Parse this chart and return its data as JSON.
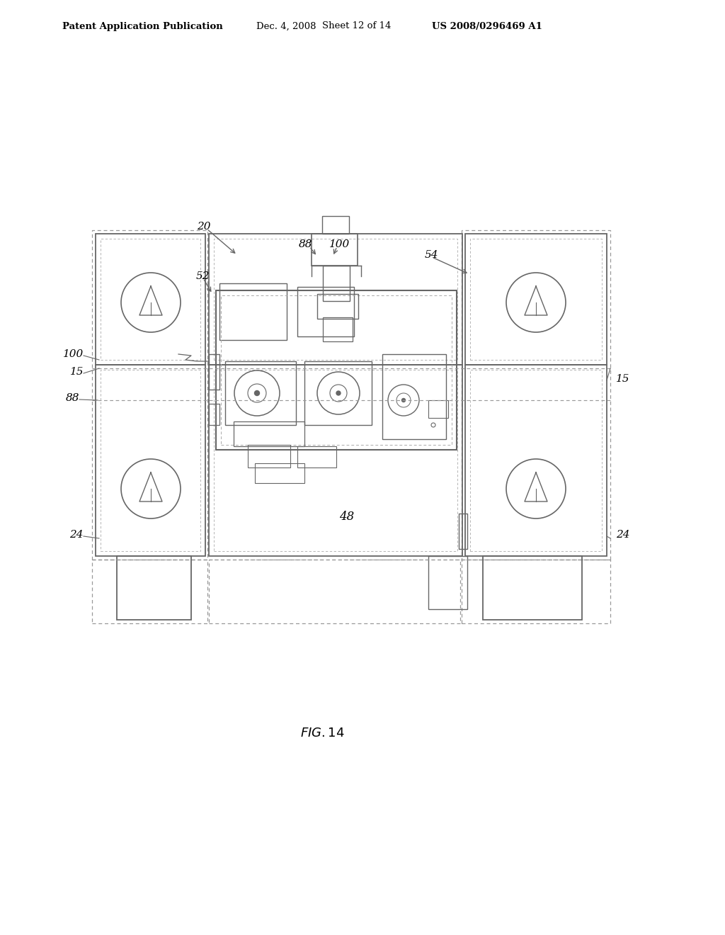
{
  "bg_color": "#ffffff",
  "header_text": "Patent Application Publication",
  "header_date": "Dec. 4, 2008",
  "header_sheet": "Sheet 12 of 14",
  "header_patent": "US 2008/0296469 A1",
  "line_color": "#666666",
  "dashed_color": "#999999",
  "light_color": "#aaaaaa"
}
